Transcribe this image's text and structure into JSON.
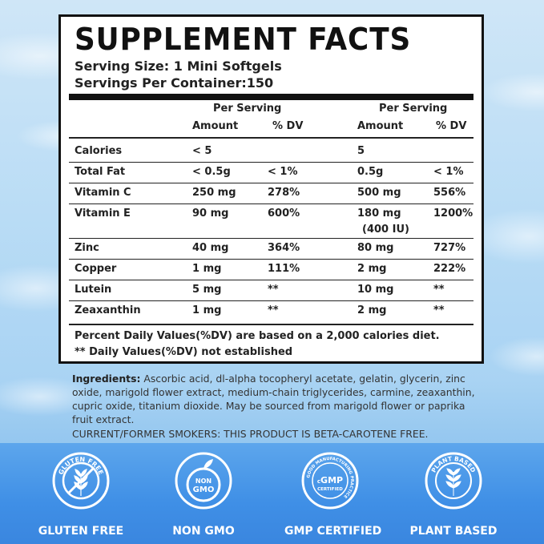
{
  "facts": {
    "title": "SUPPLEMENT FACTS",
    "serving_size": "Serving Size: 1 Mini Softgels",
    "servings_per_container": "Servings Per Container:150",
    "col_group_1": "Per Serving",
    "col_group_2": "Per Serving",
    "col_amount_1": "Amount",
    "col_dv_1": "% DV",
    "col_amount_2": "Amount",
    "col_dv_2": "% DV",
    "rows": [
      {
        "name": "Calories",
        "amt1": "< 5",
        "dv1": "",
        "amt2": "5",
        "amt2b": "",
        "dv2": ""
      },
      {
        "name": "Total Fat",
        "amt1": "< 0.5g",
        "dv1": "< 1%",
        "amt2": "0.5g",
        "amt2b": "",
        "dv2": "< 1%"
      },
      {
        "name": "Vitamin C",
        "amt1": "250 mg",
        "dv1": "278%",
        "amt2": "500 mg",
        "amt2b": "",
        "dv2": "556%"
      },
      {
        "name": "Vitamin E",
        "amt1": "90 mg",
        "dv1": "600%",
        "amt2": "180 mg",
        "amt2b": "(400 IU)",
        "dv2": "1200%"
      },
      {
        "name": "Zinc",
        "amt1": "40 mg",
        "dv1": "364%",
        "amt2": "80 mg",
        "amt2b": "",
        "dv2": "727%"
      },
      {
        "name": "Copper",
        "amt1": "1 mg",
        "dv1": "111%",
        "amt2": "2 mg",
        "amt2b": "",
        "dv2": "222%"
      },
      {
        "name": "Lutein",
        "amt1": "5 mg",
        "dv1": "**",
        "amt2": "10 mg",
        "amt2b": "",
        "dv2": "**"
      },
      {
        "name": "Zeaxanthin",
        "amt1": "1 mg",
        "dv1": "**",
        "amt2": "2 mg",
        "amt2b": "",
        "dv2": "**"
      }
    ],
    "footnote_1": "Percent Daily Values(%DV) are based on a 2,000 calories diet.",
    "footnote_2": "** Daily Values(%DV) not established"
  },
  "ingredients": {
    "label": "Ingredients:",
    "text": " Ascorbic acid, dl-alpha tocopheryl acetate, gelatin, glycerin, zinc oxide, marigold flower extract, medium-chain triglycerides, carmine, zeaxanthin, cupric oxide, titanium dioxide. May be sourced from marigold flower or paprika fruit extract.",
    "smokers": "CURRENT/FORMER SMOKERS: THIS PRODUCT IS  BETA-CAROTENE FREE."
  },
  "badges": [
    {
      "label": "GLUTEN FREE",
      "icon": "gluten-free-icon",
      "ring_text": "GLUTEN FREE"
    },
    {
      "label": "NON GMO",
      "icon": "non-gmo-icon",
      "ring_text": "NON GMO"
    },
    {
      "label": "GMP CERTIFIED",
      "icon": "gmp-certified-icon",
      "ring_text": "GOOD MANUFACTURING PRACTICE",
      "center_text": "GMP",
      "center_sub": "CERTIFIED",
      "center_prefix": "c"
    },
    {
      "label": "PLANT BASED",
      "icon": "plant-based-icon",
      "ring_text": "PLANT BASED"
    }
  ],
  "colors": {
    "band": "#3f8fe6",
    "border": "#111111",
    "badge_white": "#ffffff"
  }
}
